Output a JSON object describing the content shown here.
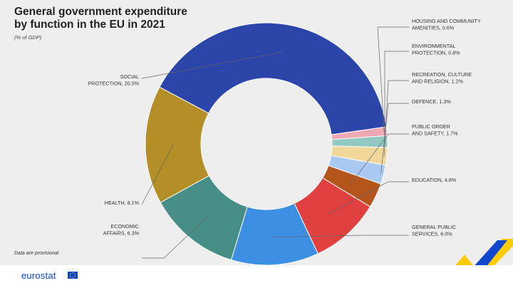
{
  "header": {
    "title": "General government expenditure by function in the EU in 2021",
    "subtitle": "(% of GDP)"
  },
  "footnote": "Data are provisional",
  "footer": {
    "logo_text": "eurostat"
  },
  "colors": {
    "background_panel": "#eeeeee",
    "logo_blue": "#0e47cb",
    "accent_yellow": "#ffcc00"
  },
  "chart_data": {
    "type": "pie",
    "style": "donut",
    "title": "General government expenditure by function in the EU in 2021",
    "subtitle": "(% of GDP)",
    "unit": "% of GDP",
    "legend": "labels beside slices",
    "slices": [
      {
        "name": "Social protection",
        "value": 20.5,
        "label_lines": [
          "SOCIAL",
          "PROTECTION, 20.5%"
        ],
        "color": "#2b45a8"
      },
      {
        "name": "Housing and community amenities",
        "value": 0.6,
        "label_lines": [
          "HOUSING AND COMMUNITY",
          "AMENITIES, 0.6%"
        ],
        "color": "#f0a8b4"
      },
      {
        "name": "Environmental protection",
        "value": 0.8,
        "label_lines": [
          "ENVIRONMENTAL",
          "PROTECTION, 0.8%"
        ],
        "color": "#93c9c3"
      },
      {
        "name": "Recreation, culture and religion",
        "value": 1.2,
        "label_lines": [
          "RECREATION, CULTURE",
          "AND RELIGION, 1.2%"
        ],
        "color": "#f2d79a"
      },
      {
        "name": "Defence",
        "value": 1.3,
        "label_lines": [
          "DEFENCE, 1.3%"
        ],
        "color": "#a9c8f2"
      },
      {
        "name": "Public order and safety",
        "value": 1.7,
        "label_lines": [
          "PUBLIC ORDER",
          "AND SAFETY, 1.7%"
        ],
        "color": "#b4561c"
      },
      {
        "name": "Education",
        "value": 4.8,
        "label_lines": [
          "EDUCATION, 4.8%"
        ],
        "color": "#e0403f"
      },
      {
        "name": "General public services",
        "value": 6.0,
        "label_lines": [
          "GENERAL PUBLIC",
          "SERVICES, 6.0%"
        ],
        "color": "#3d8fe3"
      },
      {
        "name": "Economic affairs",
        "value": 6.3,
        "label_lines": [
          "ECONOMIC",
          "AFFAIRS, 6.3%"
        ],
        "color": "#478f86"
      },
      {
        "name": "Health",
        "value": 8.1,
        "label_lines": [
          "HEALTH, 8.1%"
        ],
        "color": "#b48f27"
      }
    ]
  }
}
